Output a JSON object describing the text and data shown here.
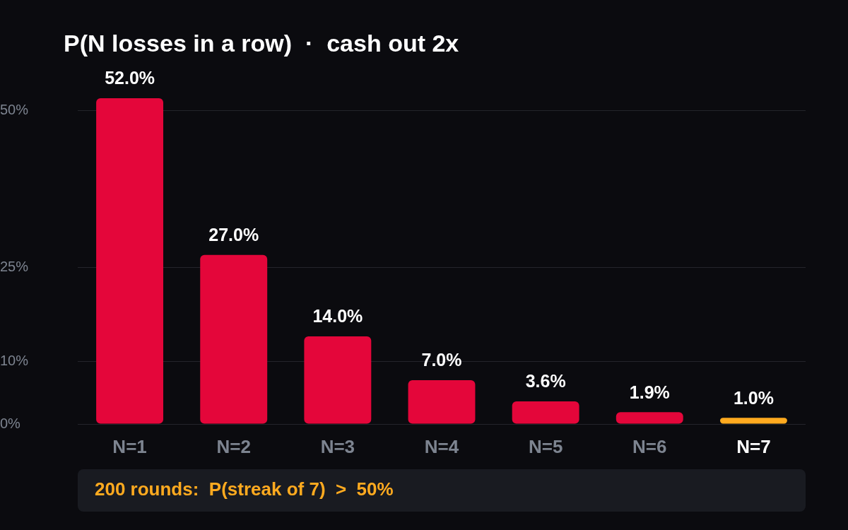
{
  "chart_data": {
    "type": "bar",
    "title": "P(N losses in a row)  ·  cash out 2x",
    "categories": [
      "N=1",
      "N=2",
      "N=3",
      "N=4",
      "N=5",
      "N=6",
      "N=7"
    ],
    "values": [
      52.0,
      27.0,
      14.0,
      7.0,
      3.6,
      1.9,
      1.0
    ],
    "colors": [
      "#e4063a",
      "#e4063a",
      "#e4063a",
      "#e4063a",
      "#e4063a",
      "#e4063a",
      "#ffaa1f"
    ],
    "value_labels": [
      "52.0%",
      "27.0%",
      "14.0%",
      "7.0%",
      "3.6%",
      "1.9%",
      "1.0%"
    ],
    "ylim": [
      0,
      52
    ],
    "yticks": [
      {
        "value": 0,
        "label": "0%"
      },
      {
        "value": 10,
        "label": "10%"
      },
      {
        "value": 25,
        "label": "25%"
      },
      {
        "value": 50,
        "label": "50%"
      }
    ],
    "grid": "y",
    "annotations": [
      "200 rounds:  P(streak of 7)  >  50%"
    ]
  }
}
